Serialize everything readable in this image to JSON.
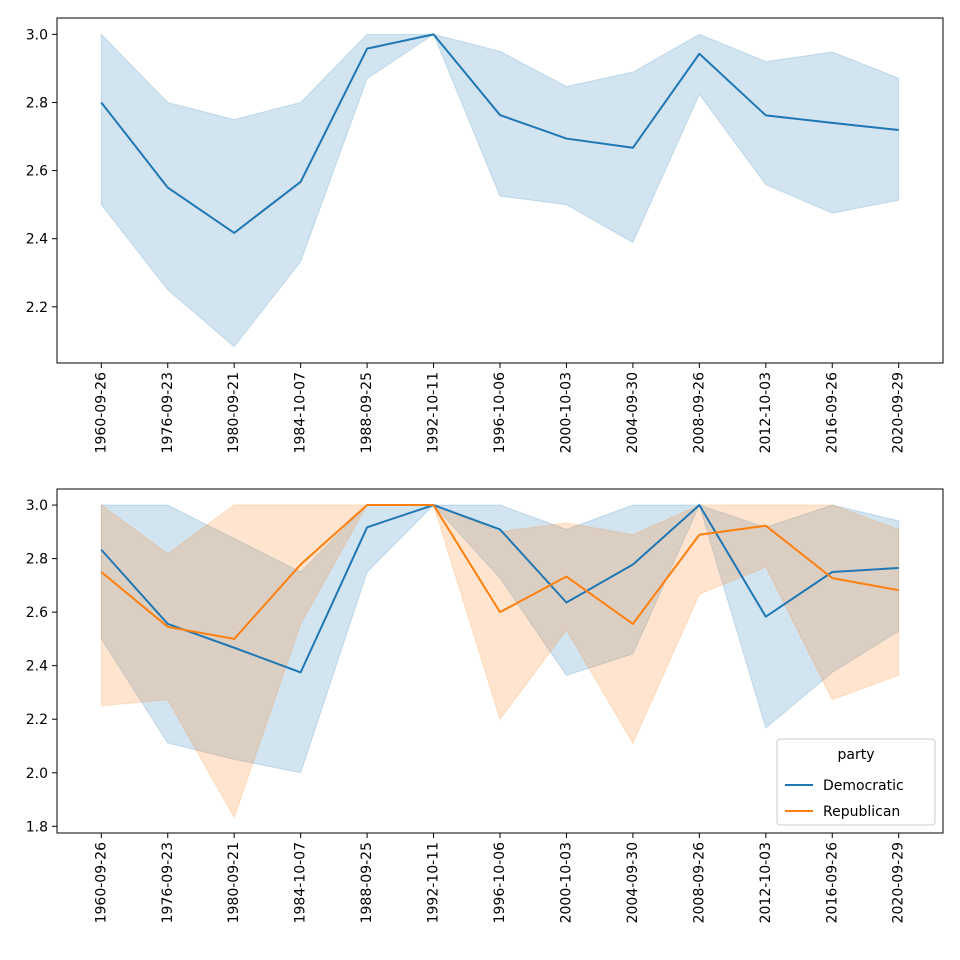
{
  "chart_data": [
    {
      "type": "line",
      "categories": [
        "1960-09-26",
        "1976-09-23",
        "1980-09-21",
        "1984-10-07",
        "1988-09-25",
        "1992-10-11",
        "1996-10-06",
        "2000-10-03",
        "2004-09-30",
        "2008-09-26",
        "2012-10-03",
        "2016-09-26",
        "2020-09-29"
      ],
      "series": [
        {
          "values": [
            2.8,
            2.55,
            2.417,
            2.567,
            2.958,
            3.0,
            2.763,
            2.694,
            2.667,
            2.943,
            2.762,
            2.74,
            2.719
          ],
          "lower": [
            2.5,
            2.25,
            2.083,
            2.333,
            2.87,
            3.0,
            2.525,
            2.5,
            2.389,
            2.824,
            2.559,
            2.475,
            2.513
          ],
          "upper": [
            3.0,
            2.8,
            2.75,
            2.8,
            3.0,
            3.0,
            2.95,
            2.847,
            2.889,
            3.0,
            2.92,
            2.948,
            2.871
          ],
          "color": "#1f77b4"
        }
      ],
      "ylim": [
        2.035,
        3.048
      ],
      "yticks": [
        2.2,
        2.4,
        2.6,
        2.8,
        3.0
      ],
      "grid": false
    },
    {
      "type": "line",
      "categories": [
        "1960-09-26",
        "1976-09-23",
        "1980-09-21",
        "1984-10-07",
        "1988-09-25",
        "1992-10-11",
        "1996-10-06",
        "2000-10-03",
        "2004-09-30",
        "2008-09-26",
        "2012-10-03",
        "2016-09-26",
        "2020-09-29"
      ],
      "series": [
        {
          "name": "Democratic",
          "values": [
            2.833,
            2.556,
            2.467,
            2.375,
            2.917,
            3.0,
            2.909,
            2.636,
            2.778,
            3.0,
            2.583,
            2.75,
            2.765
          ],
          "lower": [
            2.5,
            2.111,
            2.05,
            2.0,
            2.75,
            3.0,
            2.727,
            2.364,
            2.444,
            3.0,
            2.167,
            2.375,
            2.529
          ],
          "upper": [
            3.0,
            3.0,
            2.875,
            2.75,
            3.0,
            3.0,
            3.0,
            2.909,
            3.0,
            3.0,
            2.917,
            3.0,
            2.941
          ],
          "color": "#1f77b4"
        },
        {
          "name": "Republican",
          "values": [
            2.75,
            2.545,
            2.5,
            2.778,
            3.0,
            3.0,
            2.6,
            2.733,
            2.556,
            2.889,
            2.923,
            2.727,
            2.682
          ],
          "lower": [
            2.25,
            2.273,
            1.833,
            2.556,
            3.0,
            3.0,
            2.2,
            2.533,
            2.111,
            2.667,
            2.769,
            2.273,
            2.364
          ],
          "upper": [
            3.0,
            2.818,
            3.0,
            3.0,
            3.0,
            3.0,
            2.9,
            2.933,
            2.889,
            3.0,
            3.0,
            3.0,
            2.909
          ],
          "color": "#ff7f0e"
        }
      ],
      "ylim": [
        1.775,
        3.06
      ],
      "yticks": [
        1.8,
        2.0,
        2.2,
        2.4,
        2.6,
        2.8,
        3.0
      ],
      "grid": false,
      "legend": {
        "title": "party",
        "placement": "lower-right"
      }
    }
  ]
}
